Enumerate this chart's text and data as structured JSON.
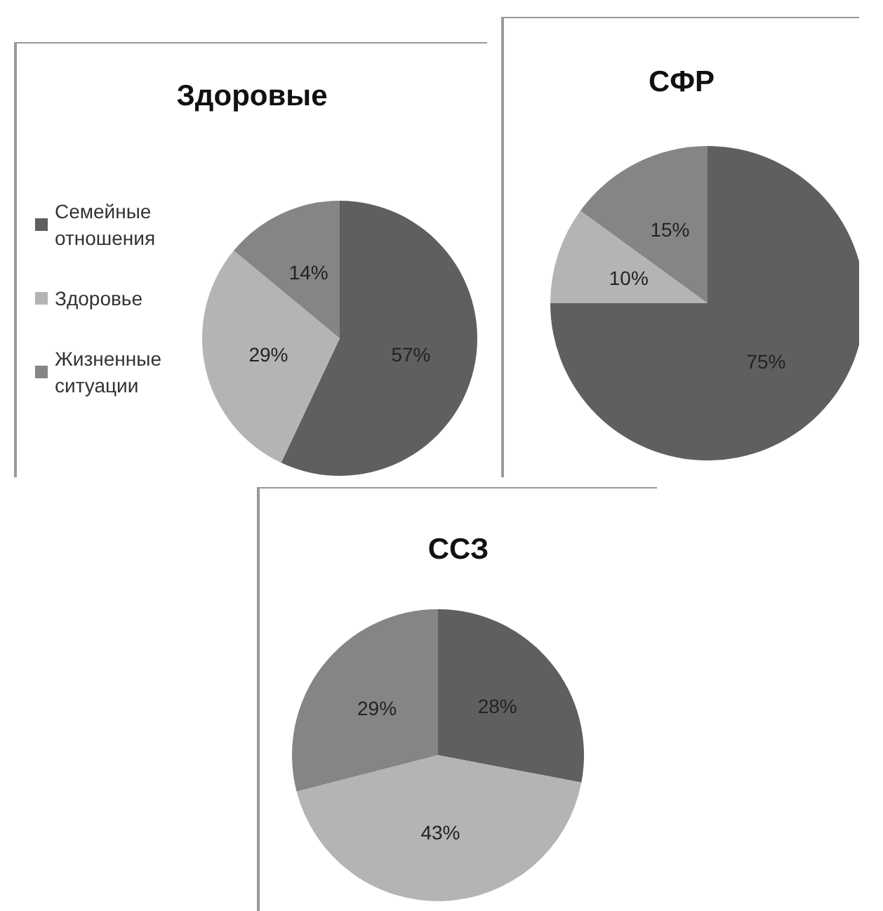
{
  "chart_data": [
    {
      "type": "pie",
      "title": "Здоровые",
      "categories": [
        "Семейные отношения",
        "Здоровье",
        "Жизненные ситуации"
      ],
      "values": [
        57,
        29,
        14
      ],
      "value_labels": [
        "57%",
        "29%",
        "14%"
      ],
      "colors": [
        "#5f5f5f",
        "#b4b4b4",
        "#858585"
      ],
      "legend": "left"
    },
    {
      "type": "pie",
      "title": "СФР",
      "categories": [
        null,
        null,
        null
      ],
      "values": [
        75,
        10,
        15
      ],
      "value_labels": [
        "75%",
        "10%",
        "15%"
      ],
      "colors": [
        "#5f5f5f",
        "#b4b4b4",
        "#858585"
      ],
      "legend": false
    },
    {
      "type": "pie",
      "title": "ССЗ",
      "categories": [
        null,
        null,
        null
      ],
      "values": [
        28,
        43,
        29
      ],
      "value_labels": [
        "28%",
        "43%",
        "29%"
      ],
      "colors": [
        "#5f5f5f",
        "#b4b4b4",
        "#858585"
      ],
      "legend": false
    }
  ]
}
